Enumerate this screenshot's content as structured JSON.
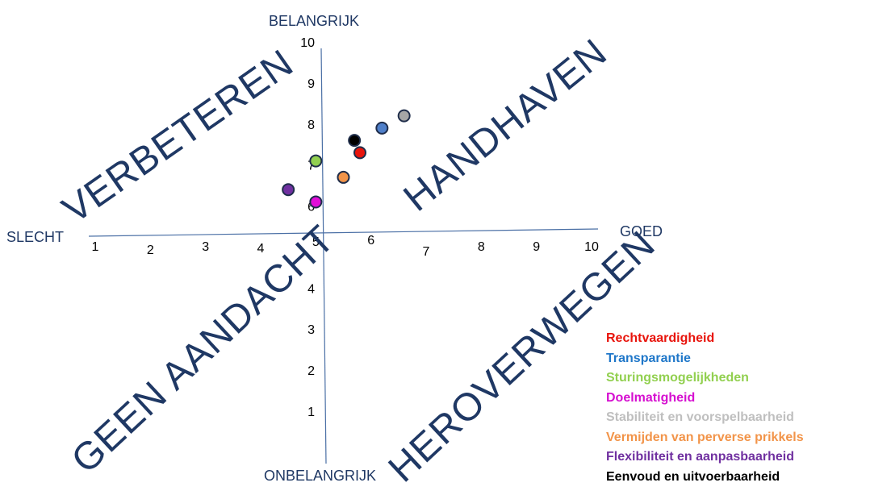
{
  "chart_data": {
    "type": "scatter",
    "labels": {
      "top": "BELANGRIJK",
      "bottom": "ONBELANGRIJK",
      "left": "SLECHT",
      "right": "GOED"
    },
    "xlim": [
      1,
      10
    ],
    "ylim": [
      1,
      10
    ],
    "x_ticks": [
      "1",
      "2",
      "3",
      "4",
      "5",
      "6",
      "7",
      "8",
      "9",
      "10"
    ],
    "y_ticks": [
      "1",
      "2",
      "3",
      "4",
      "5",
      "6",
      "7",
      "8",
      "9",
      "10"
    ],
    "quadrants": {
      "top_left": "VERBETEREN",
      "top_right": "HANDHAVEN",
      "bottom_left": "GEEN AANDACHT",
      "bottom_right": "HEROVERWEGEN"
    },
    "legend_placement": "bottom-right",
    "series": [
      {
        "name": "Rechtvaardigheid",
        "color": "#e8140c",
        "x": 5.8,
        "y": 7.3
      },
      {
        "name": "Transparantie",
        "color": "#4f7fc9",
        "x": 6.2,
        "y": 7.9
      },
      {
        "name": "Sturingsmogelijkheden",
        "color": "#92d050",
        "x": 5.0,
        "y": 7.1
      },
      {
        "name": "Doelmatigheid",
        "color": "#e10ed8",
        "x": 5.0,
        "y": 6.1
      },
      {
        "name": "Stabiliteit en voorspelbaarheid",
        "color": "#a6a6a6",
        "x": 6.6,
        "y": 8.2
      },
      {
        "name": "Vermijden van perverse prikkels",
        "color": "#f29449",
        "x": 5.5,
        "y": 6.7
      },
      {
        "name": "Flexibiliteit en aanpasbaarheid",
        "color": "#7030a0",
        "x": 4.5,
        "y": 6.4
      },
      {
        "name": "Eenvoud en uitvoerbaarheid",
        "color": "#000000",
        "x": 5.7,
        "y": 7.6
      }
    ],
    "legend_colors": [
      "#e8140c",
      "#1f77c9",
      "#92d050",
      "#d60fd0",
      "#bfbfbf",
      "#f29449",
      "#7030a0",
      "#000000"
    ]
  }
}
